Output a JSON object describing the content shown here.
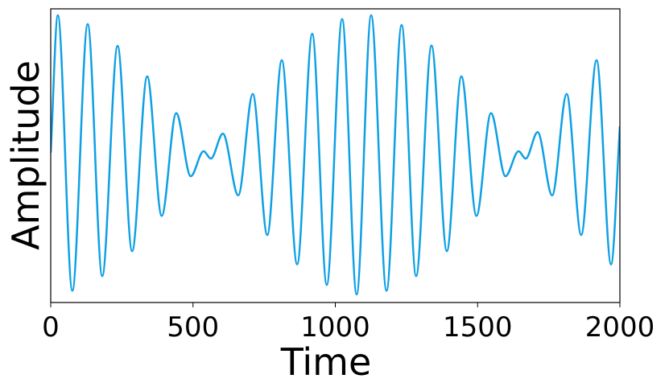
{
  "chart_data": {
    "type": "line",
    "x_label": "Time",
    "y_label": "Amplitude",
    "x": [
      0,
      25,
      76,
      130,
      181,
      235,
      286,
      339,
      390,
      441,
      492,
      537,
      563,
      605,
      659,
      710,
      761,
      812,
      866,
      919,
      970,
      1024,
      1075,
      1126,
      1180,
      1233,
      1284,
      1338,
      1392,
      1443,
      1496,
      1547,
      1598,
      1644,
      1669,
      1711,
      1762,
      1813,
      1864,
      1918,
      1969,
      2000
    ],
    "series": [
      {
        "color": "#0ea0e4",
        "values": [
          0.02,
          0.956,
          -0.92,
          0.896,
          -0.82,
          0.748,
          -0.65,
          0.54,
          -0.41,
          0.29,
          -0.14,
          0.03,
          -0.02,
          0.15,
          -0.27,
          0.42,
          -0.54,
          0.65,
          -0.74,
          0.83,
          -0.88,
          0.93,
          -0.945,
          0.956,
          -0.92,
          0.89,
          -0.82,
          0.75,
          -0.65,
          0.54,
          -0.41,
          0.29,
          -0.14,
          0.03,
          -0.02,
          0.16,
          -0.27,
          0.42,
          -0.54,
          0.65,
          -0.74,
          0.2
        ]
      }
    ],
    "xlim": [
      0,
      2000
    ],
    "xticks": [
      0,
      500,
      1000,
      1500,
      2000
    ],
    "ylim": [
      -1,
      1
    ]
  }
}
